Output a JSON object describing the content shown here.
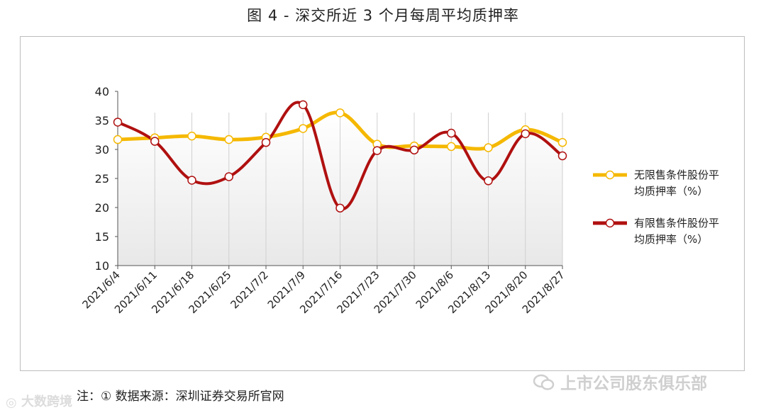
{
  "figure": {
    "title": "图 4 -  深交所近 3 个月每周平均质押率",
    "note": "注：① 数据来源：深圳证券交易所官网",
    "watermark_left": "大数跨境",
    "watermark_right": "上市公司股东俱乐部"
  },
  "colors": {
    "series1": "#f5b800",
    "series2": "#b01010",
    "marker_fill": "#ffffff",
    "gridline": "#d0d0d0",
    "axis": "#555555"
  },
  "chart_data": {
    "type": "line",
    "title": "图 4 -  深交所近 3 个月每周平均质押率",
    "xlabel": "",
    "ylabel": "",
    "x": [
      "2021/6/4",
      "2021/6/11",
      "2021/6/18",
      "2021/6/25",
      "2021/7/2",
      "2021/7/9",
      "2021/7/16",
      "2021/7/23",
      "2021/7/30",
      "2021/8/6",
      "2021/8/13",
      "2021/8/20",
      "2021/8/27"
    ],
    "ylim": [
      10,
      40
    ],
    "yticks": [
      10,
      15,
      20,
      25,
      30,
      35,
      40
    ],
    "grid": "vertical lines at each category",
    "legend_position": "right",
    "series": [
      {
        "name": "无限售条件股份平均质押率（%）",
        "values": [
          31.7,
          32.0,
          32.3,
          31.7,
          32.1,
          33.6,
          36.3,
          30.9,
          30.6,
          30.5,
          30.3,
          33.4,
          31.2
        ]
      },
      {
        "name": "有限售条件股份平均质押率（%）",
        "values": [
          34.7,
          31.4,
          24.7,
          25.3,
          31.2,
          37.7,
          19.9,
          29.8,
          29.9,
          32.8,
          24.6,
          32.7,
          28.9
        ]
      }
    ]
  }
}
